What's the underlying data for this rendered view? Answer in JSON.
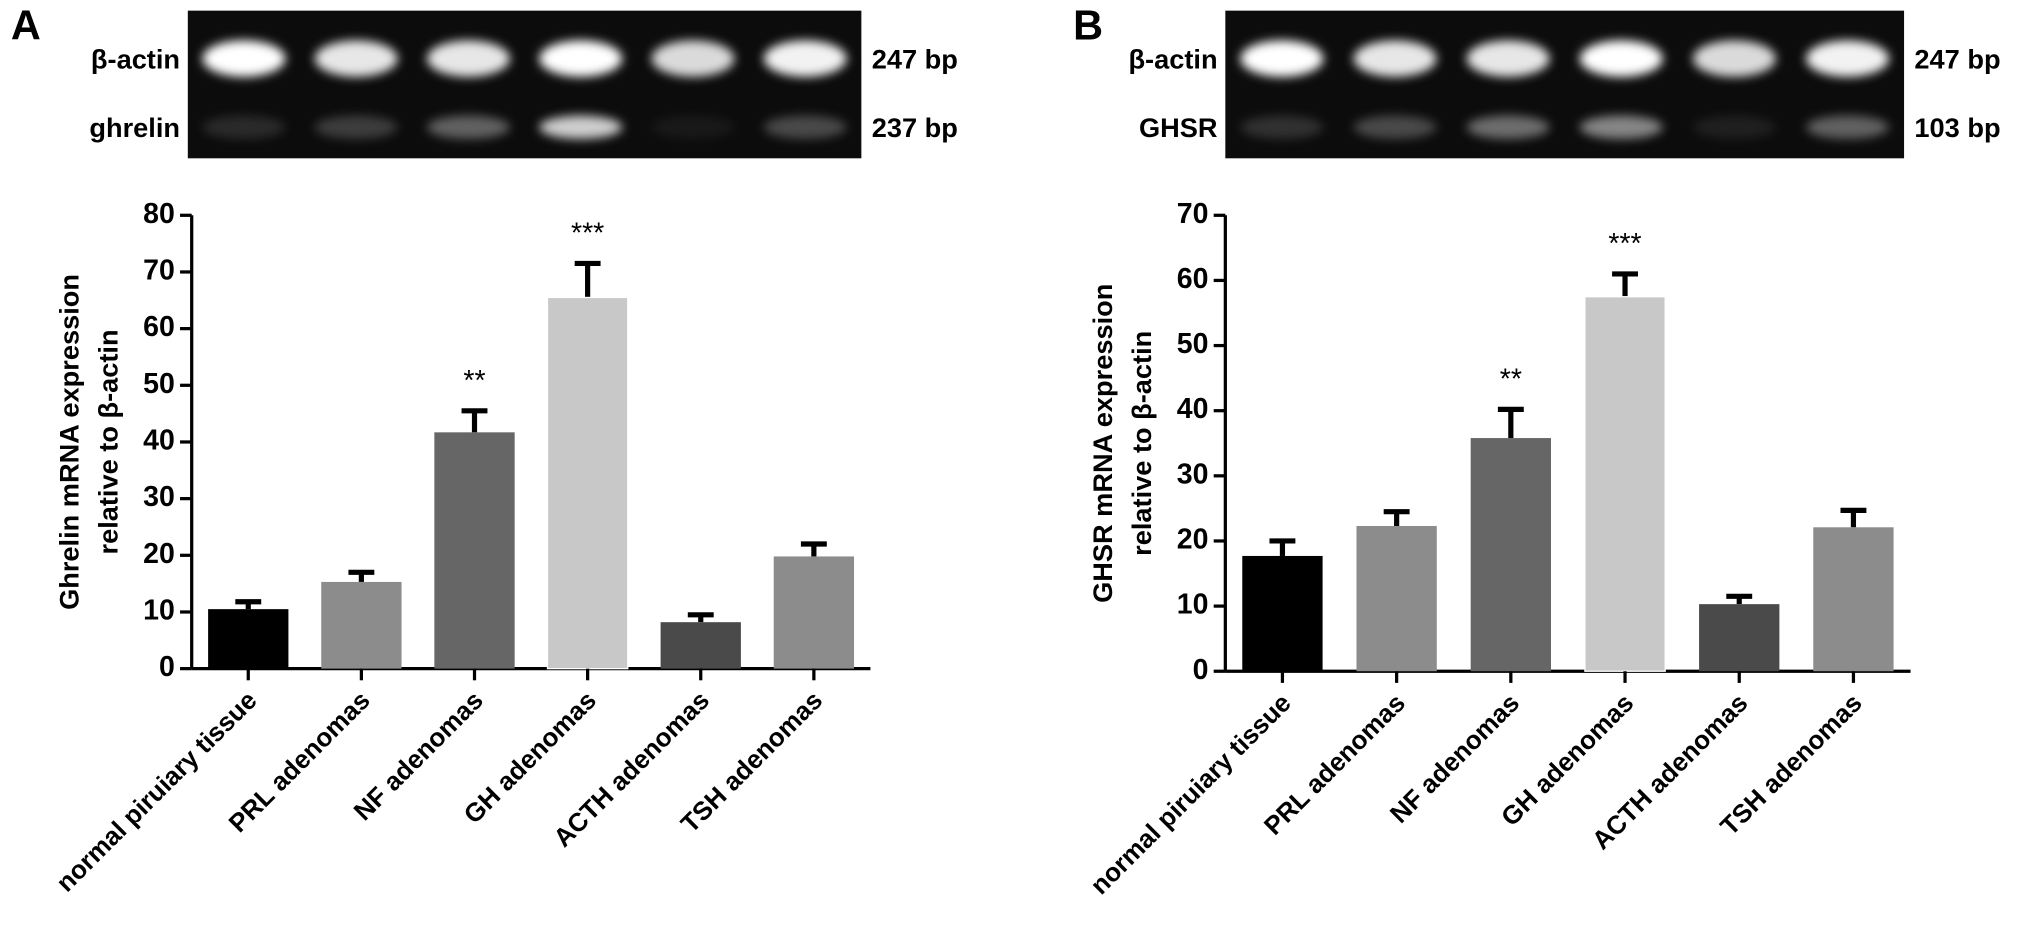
{
  "gels": [
    {
      "panel": "A",
      "rows": [
        {
          "name": "β-actin",
          "size": "247 bp"
        },
        {
          "name": "ghrelin",
          "size": "237 bp"
        }
      ]
    },
    {
      "panel": "B",
      "rows": [
        {
          "name": "β-actin",
          "size": "247 bp"
        },
        {
          "name": "GHSR",
          "size": "103 bp"
        }
      ]
    }
  ],
  "chart_data": [
    {
      "type": "bar",
      "ylabel": [
        "Ghrelin mRNA expression",
        "relative to β-actin"
      ],
      "categories": [
        "normal piruiary tissue",
        "PRL adenomas",
        "NF adenomas",
        "GH adenomas",
        "ACTH adenomas",
        "TSH adenomas"
      ],
      "values": [
        10.5,
        15.3,
        41.7,
        65.5,
        8.2,
        19.8
      ],
      "errors": [
        1.3,
        1.7,
        3.8,
        6.0,
        1.3,
        2.2
      ],
      "colors": [
        "#000000",
        "#8c8c8c",
        "#666666",
        "#c8c8c8",
        "#4a4a4a",
        "#8c8c8c"
      ],
      "annotations": [
        {
          "text": "**",
          "category": "NF adenomas"
        },
        {
          "text": "***",
          "category": "GH adenomas"
        }
      ],
      "ylim": [
        0,
        80
      ],
      "yticks": [
        0,
        10,
        20,
        30,
        40,
        50,
        60,
        70,
        80
      ]
    },
    {
      "type": "bar",
      "ylabel": [
        "GHSR mRNA expression",
        "relative to β-actin"
      ],
      "categories": [
        "normal piruiary tissue",
        "PRL adenomas",
        "NF adenomas",
        "GH adenomas",
        "ACTH adenomas",
        "TSH adenomas"
      ],
      "values": [
        17.7,
        22.3,
        35.8,
        57.5,
        10.3,
        22.1
      ],
      "errors": [
        2.3,
        2.2,
        4.4,
        3.5,
        1.2,
        2.6
      ],
      "colors": [
        "#000000",
        "#8c8c8c",
        "#666666",
        "#c8c8c8",
        "#4a4a4a",
        "#8c8c8c"
      ],
      "annotations": [
        {
          "text": "**",
          "category": "NF adenomas"
        },
        {
          "text": "***",
          "category": "GH adenomas"
        }
      ],
      "ylim": [
        0,
        70
      ],
      "yticks": [
        0,
        10,
        20,
        30,
        40,
        50,
        60,
        70
      ]
    }
  ]
}
